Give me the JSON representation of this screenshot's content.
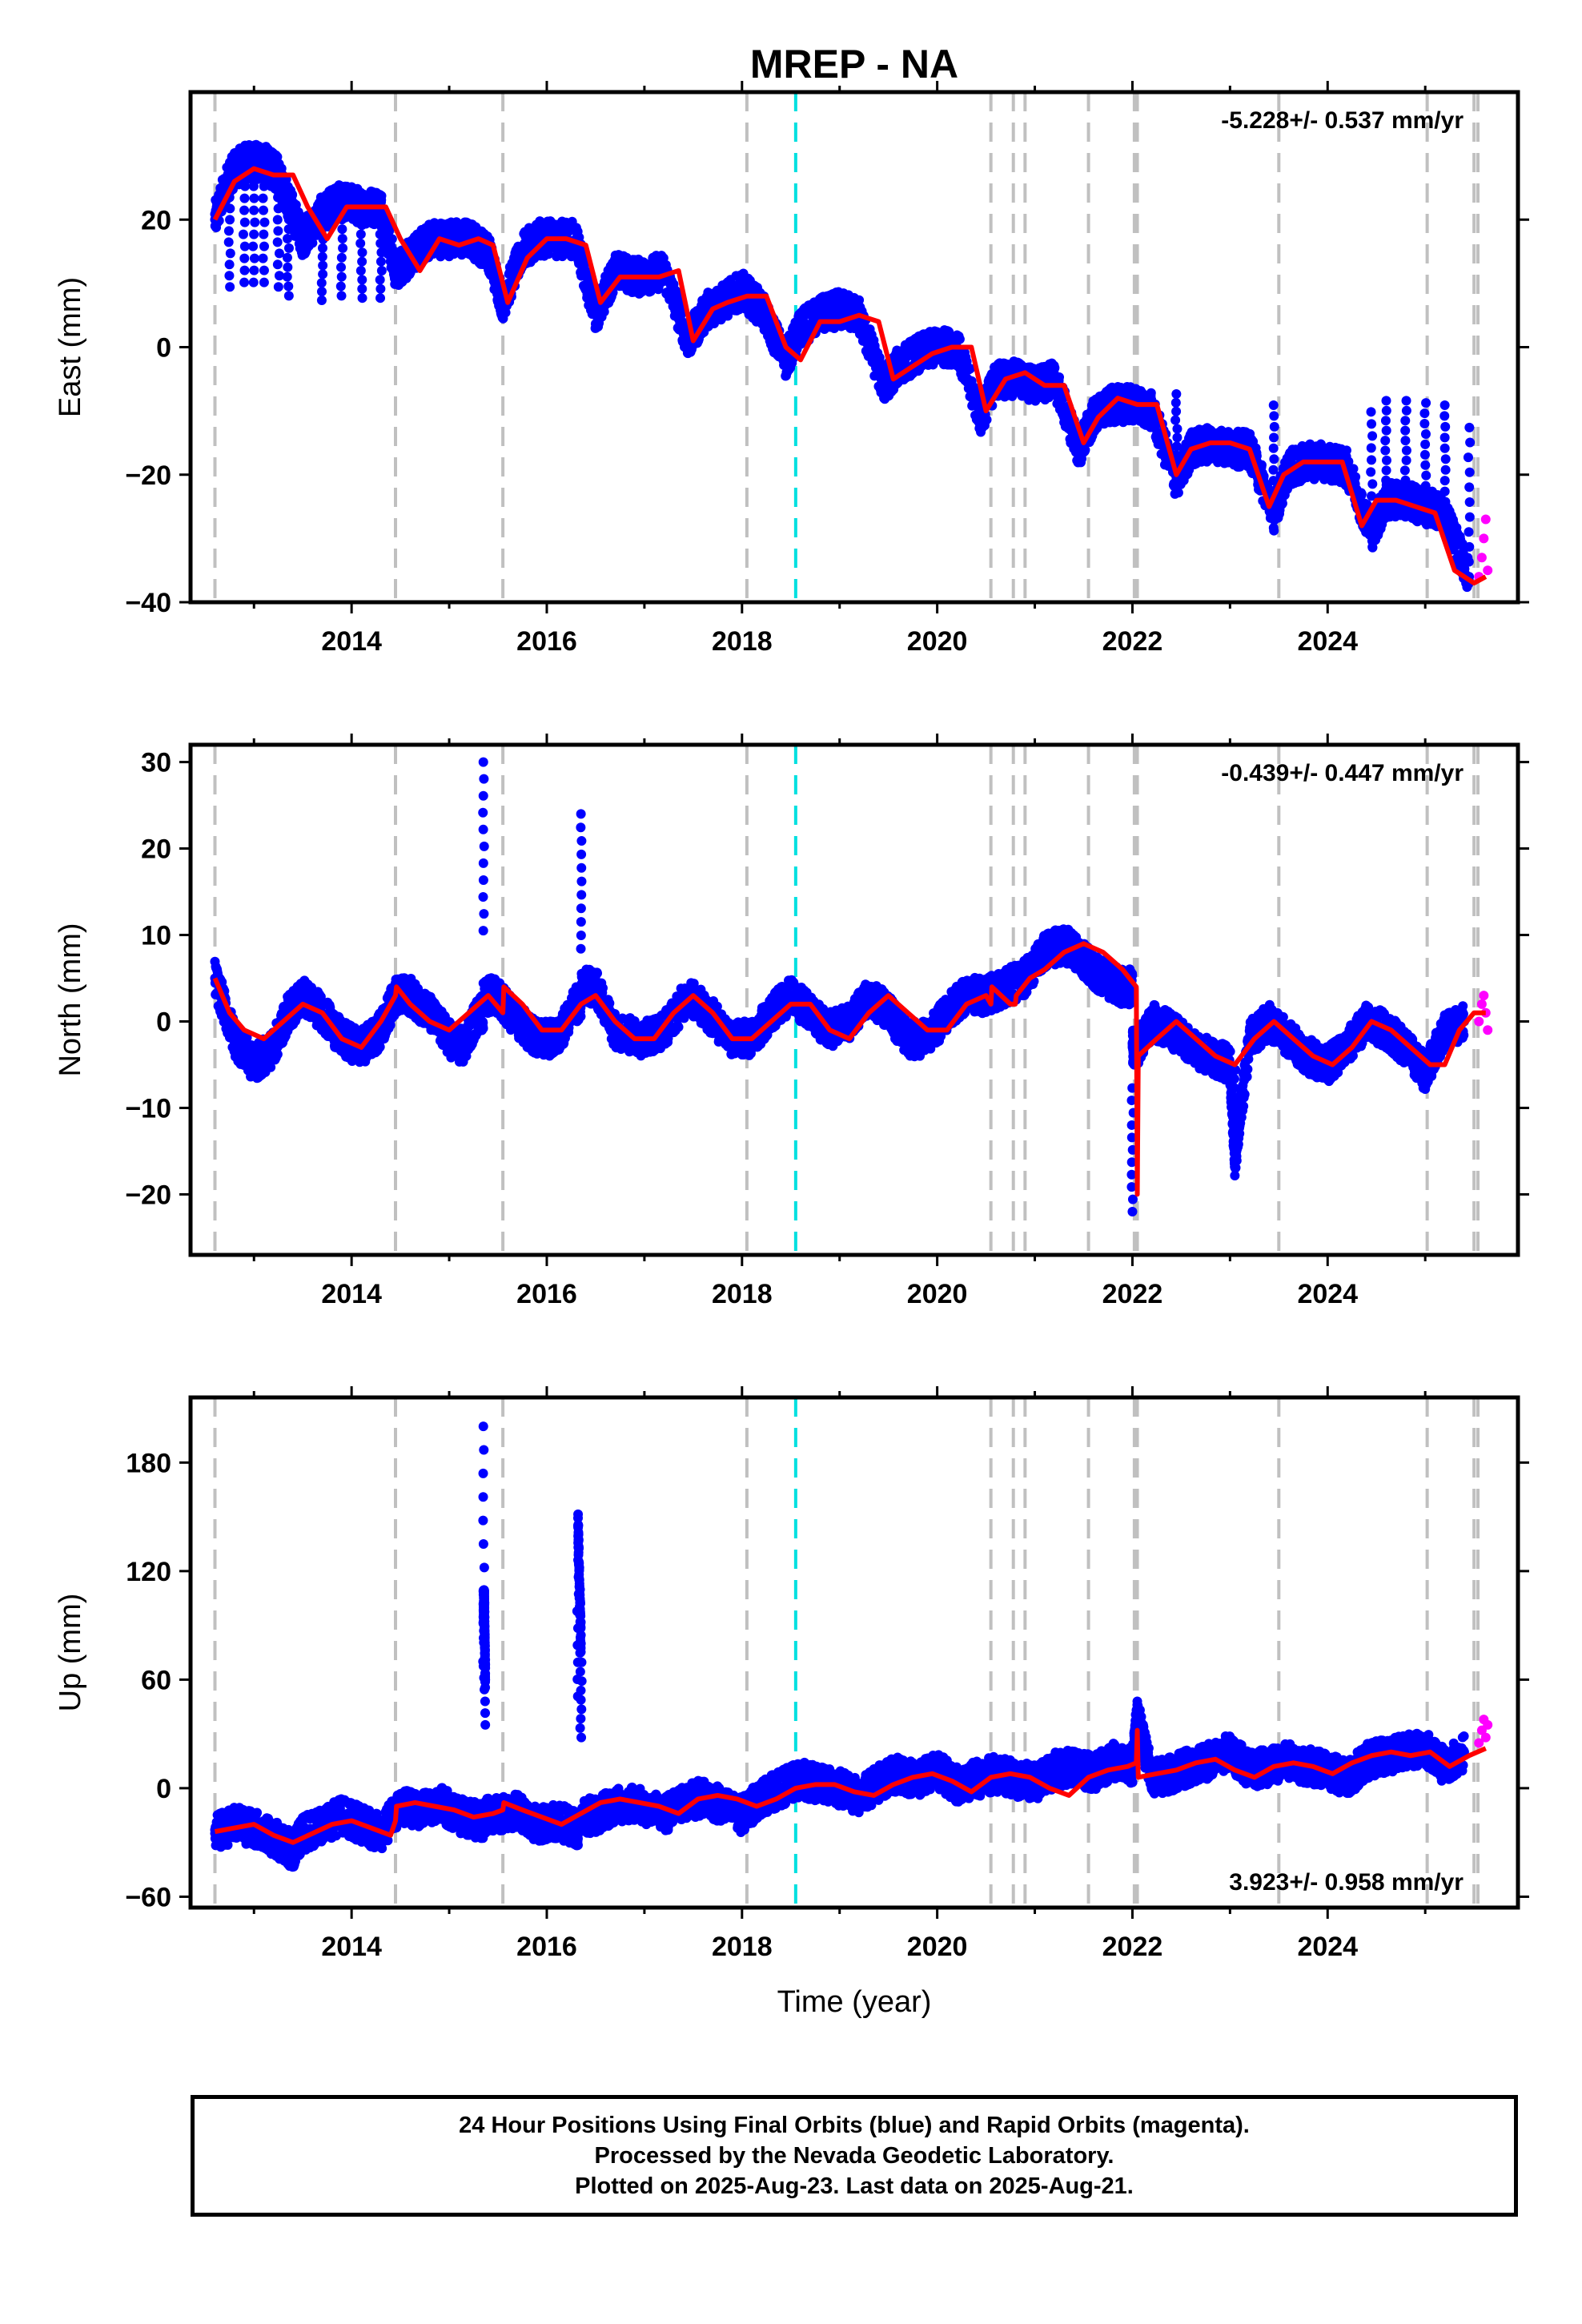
{
  "figure": {
    "title": "MREP - NA",
    "xlabel": "Time (year)",
    "footer": [
      "24 Hour Positions Using Final Orbits (blue) and Rapid Orbits (magenta).",
      "Processed by the Nevada Geodetic Laboratory.",
      "Plotted on 2025-Aug-23. Last data on 2025-Aug-21."
    ],
    "colors": {
      "final_orbits": "#0000ff",
      "rapid_orbits": "#ff00ff",
      "model_fit": "#ff0000",
      "equipment_change_line": "#c0c0c0",
      "earthquake_line": "#00e0e0"
    }
  },
  "chart_data": [
    {
      "type": "scatter",
      "panel": "east",
      "ylabel": "East (mm)",
      "rate_label": "-5.228+/- 0.537 mm/yr",
      "xlim": [
        2012.35,
        2025.95
      ],
      "ylim": [
        -40,
        40
      ],
      "xticks": [
        2014,
        2016,
        2018,
        2020,
        2022,
        2024
      ],
      "yticks": [
        -40,
        -20,
        0,
        20
      ],
      "grid": false,
      "series": [
        {
          "name": "final orbits",
          "color": "#0000ff",
          "x": [
            2012.6,
            2012.75,
            2012.9,
            2013.0,
            2013.1,
            2013.25,
            2013.35,
            2013.5,
            2013.7,
            2013.9,
            2014.1,
            2014.3,
            2014.45,
            2014.6,
            2014.8,
            2015.0,
            2015.2,
            2015.4,
            2015.55,
            2015.75,
            2015.9,
            2016.1,
            2016.3,
            2016.5,
            2016.7,
            2016.95,
            2017.2,
            2017.45,
            2017.65,
            2017.8,
            2018.0,
            2018.2,
            2018.45,
            2018.6,
            2018.8,
            2019.0,
            2019.2,
            2019.45,
            2019.6,
            2019.8,
            2020.0,
            2020.2,
            2020.45,
            2020.6,
            2020.8,
            2021.0,
            2021.2,
            2021.45,
            2021.6,
            2021.8,
            2022.0,
            2022.2,
            2022.45,
            2022.6,
            2022.8,
            2023.0,
            2023.2,
            2023.45,
            2023.6,
            2023.8,
            2024.0,
            2024.2,
            2024.45,
            2024.6,
            2024.8,
            2025.0,
            2025.2,
            2025.45
          ],
          "y": [
            20,
            27,
            29,
            29,
            29,
            27,
            23,
            17,
            21,
            23,
            22,
            22,
            12,
            14,
            17,
            17,
            17,
            15,
            7,
            15,
            17,
            17,
            17,
            5,
            12,
            11,
            12,
            1,
            6,
            7,
            9,
            6,
            -2,
            3,
            5,
            6,
            5,
            -6,
            -3,
            -1,
            0,
            0,
            -11,
            -5,
            -5,
            -6,
            -5,
            -16,
            -11,
            -9,
            -9,
            -10,
            -21,
            -16,
            -15,
            -16,
            -16,
            -26,
            -19,
            -18,
            -18,
            -19,
            -29,
            -24,
            -24,
            -25,
            -26,
            -36
          ]
        },
        {
          "name": "rapid orbits",
          "color": "#ff00ff",
          "x": [
            2025.55,
            2025.58,
            2025.6,
            2025.62,
            2025.64
          ],
          "y": [
            -36,
            -33,
            -30,
            -27,
            -35
          ]
        },
        {
          "name": "model fit",
          "color": "#ff0000",
          "x": [
            2012.6,
            2012.8,
            2013.0,
            2013.2,
            2013.4,
            2013.55,
            2013.75,
            2013.95,
            2014.15,
            2014.35,
            2014.5,
            2014.7,
            2014.9,
            2015.1,
            2015.3,
            2015.45,
            2015.6,
            2015.8,
            2016.0,
            2016.2,
            2016.4,
            2016.55,
            2016.75,
            2016.95,
            2017.15,
            2017.35,
            2017.5,
            2017.7,
            2017.85,
            2018.05,
            2018.25,
            2018.45,
            2018.6,
            2018.8,
            2019.0,
            2019.2,
            2019.4,
            2019.55,
            2019.75,
            2019.95,
            2020.15,
            2020.35,
            2020.5,
            2020.7,
            2020.9,
            2021.1,
            2021.3,
            2021.5,
            2021.65,
            2021.85,
            2022.05,
            2022.25,
            2022.45,
            2022.6,
            2022.8,
            2023.0,
            2023.2,
            2023.4,
            2023.55,
            2023.75,
            2023.95,
            2024.15,
            2024.35,
            2024.5,
            2024.7,
            2024.9,
            2025.1,
            2025.3,
            2025.5,
            2025.62
          ],
          "y": [
            20,
            26,
            28,
            27,
            27,
            22,
            17,
            22,
            22,
            22,
            17,
            12,
            17,
            16,
            17,
            16,
            7,
            14,
            17,
            17,
            16,
            7,
            11,
            11,
            11,
            12,
            1,
            6,
            7,
            8,
            8,
            0,
            -2,
            4,
            4,
            5,
            4,
            -5,
            -3,
            -1,
            0,
            0,
            -10,
            -5,
            -4,
            -6,
            -6,
            -15,
            -11,
            -8,
            -9,
            -9,
            -20,
            -16,
            -15,
            -15,
            -16,
            -25,
            -20,
            -18,
            -18,
            -18,
            -28,
            -24,
            -24,
            -25,
            -26,
            -35,
            -37,
            -36
          ]
        }
      ]
    },
    {
      "type": "scatter",
      "panel": "north",
      "ylabel": "North (mm)",
      "rate_label": "-0.439+/- 0.447 mm/yr",
      "xlim": [
        2012.35,
        2025.95
      ],
      "ylim": [
        -27,
        32
      ],
      "xticks": [
        2014,
        2016,
        2018,
        2020,
        2022,
        2024
      ],
      "yticks": [
        -20,
        -10,
        0,
        10,
        20,
        30
      ],
      "grid": false,
      "series": [
        {
          "name": "final orbits",
          "color": "#0000ff",
          "x": [
            2012.6,
            2012.8,
            2013.0,
            2013.2,
            2013.35,
            2013.5,
            2013.7,
            2013.9,
            2014.1,
            2014.3,
            2014.45,
            2014.6,
            2014.8,
            2015.0,
            2015.15,
            2015.3,
            2015.35,
            2015.5,
            2015.7,
            2015.9,
            2016.1,
            2016.3,
            2016.35,
            2016.5,
            2016.7,
            2016.95,
            2017.2,
            2017.45,
            2017.65,
            2017.9,
            2018.1,
            2018.3,
            2018.5,
            2018.7,
            2018.9,
            2019.1,
            2019.3,
            2019.5,
            2019.7,
            2019.9,
            2020.1,
            2020.3,
            2020.5,
            2020.7,
            2020.9,
            2021.1,
            2021.3,
            2021.5,
            2021.7,
            2021.9,
            2022.0,
            2022.05,
            2022.2,
            2022.4,
            2022.6,
            2022.8,
            2023.0,
            2023.05,
            2023.2,
            2023.4,
            2023.6,
            2023.8,
            2024.0,
            2024.2,
            2024.4,
            2024.6,
            2024.8,
            2025.0,
            2025.2,
            2025.4
          ],
          "y": [
            5,
            -2,
            -5,
            -3,
            1,
            3,
            1,
            -2,
            -3,
            -1,
            3,
            3,
            1,
            -2,
            -3,
            1,
            30,
            3,
            0,
            -2,
            -2,
            2,
            24,
            4,
            -1,
            -2,
            -1,
            3,
            1,
            -2,
            -2,
            1,
            3,
            1,
            -1,
            0,
            3,
            1,
            -2,
            -2,
            1,
            3,
            3,
            4,
            5,
            8,
            9,
            7,
            5,
            4,
            -22,
            -3,
            0,
            -1,
            -3,
            -4,
            -5,
            -16,
            -2,
            0,
            -2,
            -4,
            -5,
            -3,
            0,
            -1,
            -3,
            -6,
            -1,
            0
          ]
        },
        {
          "name": "rapid orbits",
          "color": "#ff00ff",
          "x": [
            2025.55,
            2025.58,
            2025.6,
            2025.62,
            2025.64
          ],
          "y": [
            0,
            2,
            3,
            1,
            -1
          ]
        },
        {
          "name": "model fit",
          "color": "#ff0000",
          "x": [
            2012.6,
            2012.75,
            2012.9,
            2013.1,
            2013.3,
            2013.5,
            2013.7,
            2013.9,
            2014.1,
            2014.3,
            2014.45,
            2014.46,
            2014.6,
            2014.8,
            2015.0,
            2015.2,
            2015.4,
            2015.55,
            2015.56,
            2015.75,
            2015.95,
            2016.15,
            2016.35,
            2016.5,
            2016.7,
            2016.9,
            2017.1,
            2017.3,
            2017.5,
            2017.7,
            2017.9,
            2018.1,
            2018.3,
            2018.5,
            2018.7,
            2018.9,
            2019.1,
            2019.3,
            2019.5,
            2019.7,
            2019.9,
            2020.1,
            2020.3,
            2020.5,
            2020.55,
            2020.56,
            2020.75,
            2020.8,
            2020.81,
            2020.95,
            2021.1,
            2021.3,
            2021.5,
            2021.7,
            2021.9,
            2022.04,
            2022.05,
            2022.06,
            2022.25,
            2022.45,
            2022.65,
            2022.85,
            2023.05,
            2023.25,
            2023.45,
            2023.65,
            2023.85,
            2024.05,
            2024.25,
            2024.45,
            2024.65,
            2024.85,
            2025.05,
            2025.2,
            2025.35,
            2025.5,
            2025.62
          ],
          "y": [
            5,
            1,
            -1,
            -2,
            0,
            2,
            1,
            -2,
            -3,
            0,
            3,
            4,
            2,
            0,
            -1,
            1,
            3,
            1,
            4,
            2,
            -1,
            -1,
            2,
            3,
            0,
            -2,
            -2,
            1,
            3,
            1,
            -2,
            -2,
            0,
            2,
            2,
            -1,
            -2,
            1,
            3,
            1,
            -1,
            -1,
            2,
            3,
            2,
            4,
            2,
            2,
            3,
            5,
            6,
            8,
            9,
            8,
            6,
            4,
            -20,
            -4,
            -2,
            0,
            -2,
            -4,
            -5,
            -2,
            0,
            -2,
            -4,
            -5,
            -3,
            0,
            -1,
            -3,
            -5,
            -5,
            -1,
            1,
            1
          ]
        }
      ]
    },
    {
      "type": "scatter",
      "panel": "up",
      "ylabel": "Up (mm)",
      "rate_label": "3.923+/- 0.958 mm/yr",
      "xlim": [
        2012.35,
        2025.95
      ],
      "ylim": [
        -66,
        216
      ],
      "xticks": [
        2014,
        2016,
        2018,
        2020,
        2022,
        2024
      ],
      "yticks": [
        -60,
        0,
        60,
        120,
        180
      ],
      "grid": false,
      "series": [
        {
          "name": "final orbits",
          "color": "#0000ff",
          "x": [
            2012.6,
            2012.8,
            2013.0,
            2013.2,
            2013.3,
            2013.4,
            2013.5,
            2013.7,
            2013.9,
            2014.1,
            2014.3,
            2014.5,
            2014.7,
            2014.9,
            2015.1,
            2015.3,
            2015.35,
            2015.36,
            2015.37,
            2015.5,
            2015.7,
            2015.9,
            2016.1,
            2016.3,
            2016.32,
            2016.35,
            2016.5,
            2016.7,
            2016.9,
            2017.2,
            2017.4,
            2017.6,
            2017.8,
            2018.0,
            2018.2,
            2018.4,
            2018.6,
            2018.8,
            2019.0,
            2019.2,
            2019.4,
            2019.6,
            2019.8,
            2020.0,
            2020.2,
            2020.4,
            2020.6,
            2020.8,
            2021.0,
            2021.2,
            2021.4,
            2021.6,
            2021.8,
            2022.0,
            2022.05,
            2022.2,
            2022.4,
            2022.6,
            2022.8,
            2023.0,
            2023.2,
            2023.4,
            2023.6,
            2023.8,
            2024.0,
            2024.2,
            2024.4,
            2024.6,
            2024.8,
            2025.0,
            2025.2,
            2025.4
          ],
          "y": [
            -25,
            -20,
            -22,
            -28,
            -30,
            -35,
            -25,
            -20,
            -15,
            -20,
            -25,
            -10,
            -12,
            -8,
            -15,
            -18,
            200,
            100,
            60,
            -15,
            -12,
            -20,
            -18,
            -22,
            145,
            80,
            -15,
            -10,
            -8,
            -15,
            -8,
            -5,
            -10,
            -15,
            -5,
            0,
            5,
            2,
            0,
            -5,
            3,
            8,
            5,
            10,
            2,
            5,
            8,
            5,
            3,
            10,
            12,
            8,
            15,
            12,
            40,
            5,
            8,
            12,
            15,
            20,
            10,
            12,
            15,
            12,
            10,
            5,
            15,
            18,
            20,
            22,
            12,
            20
          ]
        },
        {
          "name": "rapid orbits",
          "color": "#ff00ff",
          "x": [
            2025.55,
            2025.58,
            2025.6,
            2025.62,
            2025.64
          ],
          "y": [
            25,
            32,
            38,
            28,
            35
          ]
        },
        {
          "name": "model fit",
          "color": "#ff0000",
          "x": [
            2012.6,
            2012.8,
            2013.0,
            2013.2,
            2013.4,
            2013.6,
            2013.8,
            2014.0,
            2014.2,
            2014.4,
            2014.45,
            2014.46,
            2014.65,
            2014.85,
            2015.05,
            2015.25,
            2015.45,
            2015.55,
            2015.56,
            2015.75,
            2015.95,
            2016.15,
            2016.35,
            2016.55,
            2016.75,
            2016.95,
            2017.15,
            2017.35,
            2017.55,
            2017.75,
            2017.95,
            2018.15,
            2018.35,
            2018.55,
            2018.75,
            2018.95,
            2019.15,
            2019.35,
            2019.55,
            2019.75,
            2019.95,
            2020.15,
            2020.35,
            2020.55,
            2020.75,
            2020.95,
            2021.15,
            2021.35,
            2021.55,
            2021.75,
            2021.95,
            2022.04,
            2022.05,
            2022.06,
            2022.25,
            2022.45,
            2022.65,
            2022.85,
            2023.05,
            2023.25,
            2023.45,
            2023.65,
            2023.85,
            2024.05,
            2024.25,
            2024.45,
            2024.65,
            2024.85,
            2025.05,
            2025.25,
            2025.45,
            2025.62
          ],
          "y": [
            -24,
            -22,
            -20,
            -26,
            -30,
            -25,
            -20,
            -18,
            -22,
            -26,
            -18,
            -10,
            -8,
            -10,
            -12,
            -16,
            -14,
            -12,
            -8,
            -12,
            -16,
            -20,
            -14,
            -8,
            -6,
            -8,
            -10,
            -14,
            -6,
            -4,
            -6,
            -10,
            -6,
            0,
            2,
            2,
            -2,
            -4,
            2,
            6,
            8,
            4,
            -2,
            6,
            8,
            6,
            0,
            -4,
            6,
            10,
            12,
            14,
            32,
            6,
            8,
            10,
            14,
            16,
            10,
            6,
            12,
            14,
            12,
            8,
            14,
            18,
            20,
            18,
            20,
            12,
            18,
            22
          ]
        }
      ]
    }
  ]
}
